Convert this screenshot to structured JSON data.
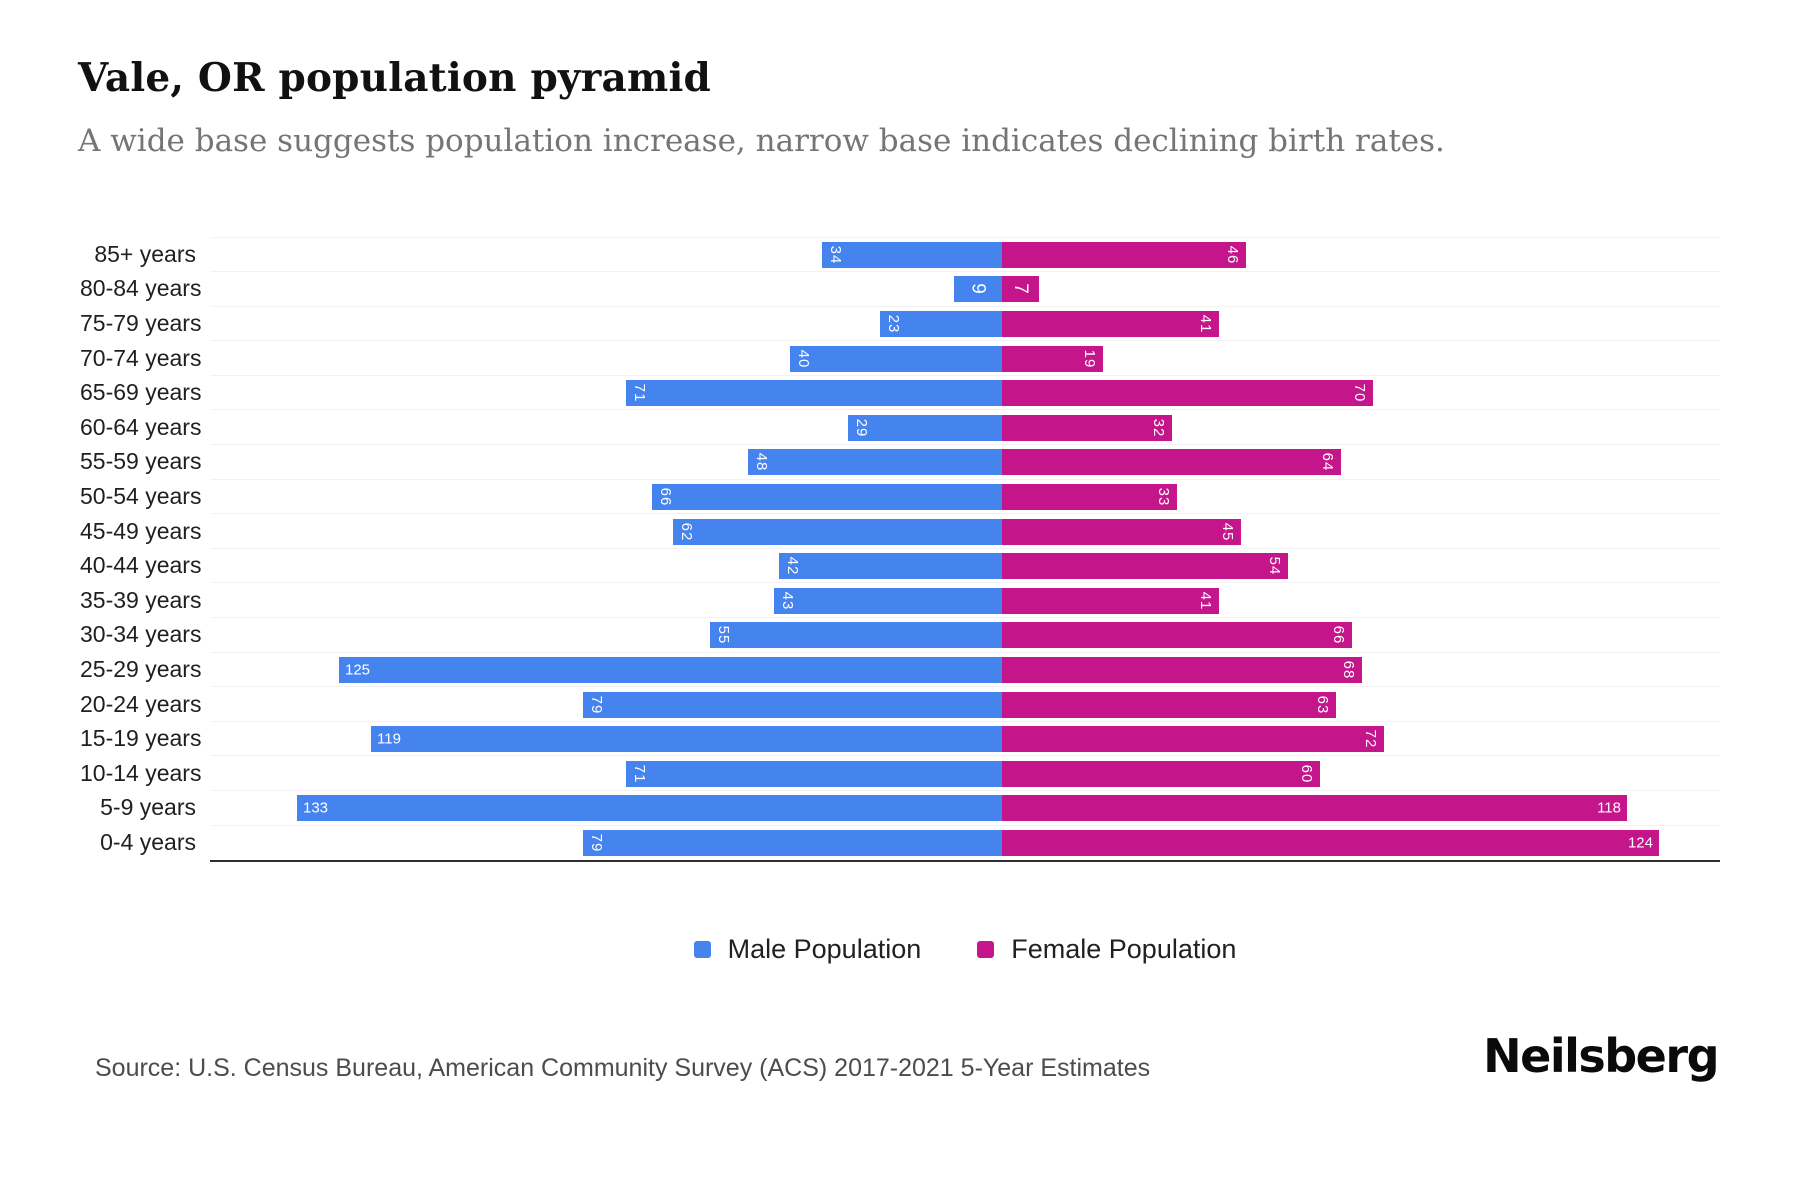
{
  "header": {
    "title": "Vale, OR population pyramid",
    "subtitle": "A wide base suggests population increase, narrow base indicates declining birth rates."
  },
  "chart_data": {
    "type": "bar",
    "variant": "population-pyramid",
    "title": "Vale, OR population pyramid",
    "categories": [
      "85+ years",
      "80-84 years",
      "75-79 years",
      "70-74 years",
      "65-69 years",
      "60-64 years",
      "55-59 years",
      "50-54 years",
      "45-49 years",
      "40-44 years",
      "35-39 years",
      "30-34 years",
      "25-29 years",
      "20-24 years",
      "15-19 years",
      "10-14 years",
      "5-9 years",
      "0-4 years"
    ],
    "series": [
      {
        "name": "Male Population",
        "side": "left",
        "color": "#4583EE",
        "values": [
          34,
          9,
          23,
          40,
          71,
          29,
          48,
          66,
          62,
          42,
          43,
          55,
          125,
          79,
          119,
          71,
          133,
          79
        ]
      },
      {
        "name": "Female Population",
        "side": "right",
        "color": "#C4158B",
        "values": [
          46,
          7,
          41,
          19,
          70,
          32,
          64,
          33,
          45,
          54,
          41,
          66,
          68,
          63,
          72,
          60,
          118,
          124
        ]
      }
    ],
    "value_label_style": "white, inside bar at outer end, rotated 90deg when value < 100",
    "x_axis": {
      "max_per_side": 150,
      "ticks_shown": false
    },
    "grid": "light horizontal row-separator lines",
    "legend_position": "bottom-center"
  },
  "legend": {
    "male_label": "Male Population",
    "female_label": "Female Population"
  },
  "footer": {
    "source": "Source: U.S. Census Bureau, American Community Survey (ACS) 2017-2021 5-Year Estimates",
    "brand": "Neilsberg"
  }
}
